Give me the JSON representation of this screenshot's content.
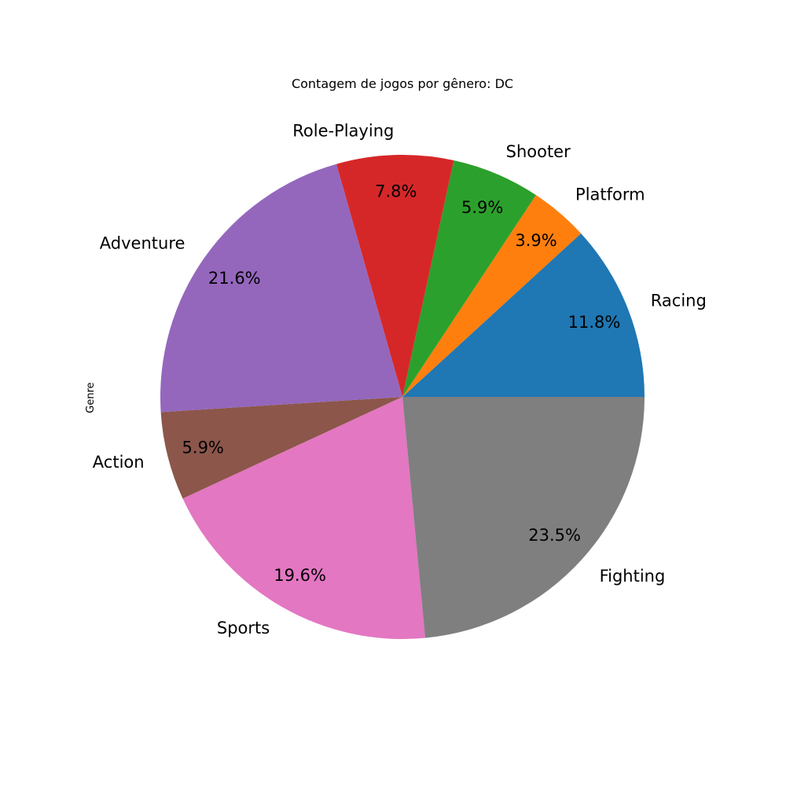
{
  "chart_data": {
    "type": "pie",
    "title": "Contagem de jogos por gênero: DC",
    "ylabel": "Genre",
    "autopct_format": "%.1f%%",
    "start_angle_deg": 0,
    "direction": "counterclockwise",
    "slices": [
      {
        "label": "Racing",
        "percent": 11.8,
        "color": "#1f77b4"
      },
      {
        "label": "Platform",
        "percent": 3.9,
        "color": "#ff7f0e"
      },
      {
        "label": "Shooter",
        "percent": 5.9,
        "color": "#2ca02c"
      },
      {
        "label": "Role-Playing",
        "percent": 7.8,
        "color": "#d62728"
      },
      {
        "label": "Adventure",
        "percent": 21.6,
        "color": "#9467bd"
      },
      {
        "label": "Action",
        "percent": 5.9,
        "color": "#8c564b"
      },
      {
        "label": "Sports",
        "percent": 19.6,
        "color": "#e377c2"
      },
      {
        "label": "Fighting",
        "percent": 23.5,
        "color": "#7f7f7f"
      }
    ]
  }
}
